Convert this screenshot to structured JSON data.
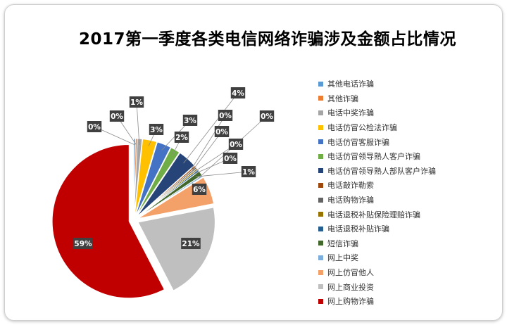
{
  "chart_data": {
    "type": "pie",
    "title": "2017第一季度各类电信网络诈骗涉及金额占比情况",
    "legend_position": "right",
    "slices": [
      {
        "name": "其他电话诈骗",
        "value": 0,
        "label": "0%",
        "color": "#5b9bd5"
      },
      {
        "name": "其他诈骗",
        "value": 0,
        "label": "0%",
        "color": "#ed7d31"
      },
      {
        "name": "电话中奖诈骗",
        "value": 1,
        "label": "1%",
        "color": "#a5a5a5"
      },
      {
        "name": "电话仿冒公检法诈骗",
        "value": 3,
        "label": "3%",
        "color": "#ffc000"
      },
      {
        "name": "电话仿冒客服诈骗",
        "value": 3,
        "label": "3%",
        "color": "#4472c4"
      },
      {
        "name": "电话仿冒领导熟人客户诈骗",
        "value": 2,
        "label": "2%",
        "color": "#70ad47"
      },
      {
        "name": "电话仿冒领导熟人部队客户诈骗",
        "value": 4,
        "label": "4%",
        "color": "#264478"
      },
      {
        "name": "电话敲诈勒索",
        "value": 0,
        "label": "0%",
        "color": "#9e480e"
      },
      {
        "name": "电话购物诈骗",
        "value": 0,
        "label": "0%",
        "color": "#636363"
      },
      {
        "name": "电话退税补贴保险理赔诈骗",
        "value": 0,
        "label": "0%",
        "color": "#997300"
      },
      {
        "name": "电话退税补贴诈骗",
        "value": 0,
        "label": "0%",
        "color": "#255e91"
      },
      {
        "name": "短信诈骗",
        "value": 1,
        "label": "1%",
        "color": "#43682b"
      },
      {
        "name": "网上中奖",
        "value": 0,
        "label": "0%",
        "color": "#7cafdd"
      },
      {
        "name": "网上仿冒他人",
        "value": 6,
        "label": "6%",
        "color": "#f4a069"
      },
      {
        "name": "网上商业投资",
        "value": 21,
        "label": "21%",
        "color": "#bfbfbf"
      },
      {
        "name": "网上购物诈骗",
        "value": 59,
        "label": "59%",
        "color": "#c00000"
      }
    ]
  }
}
